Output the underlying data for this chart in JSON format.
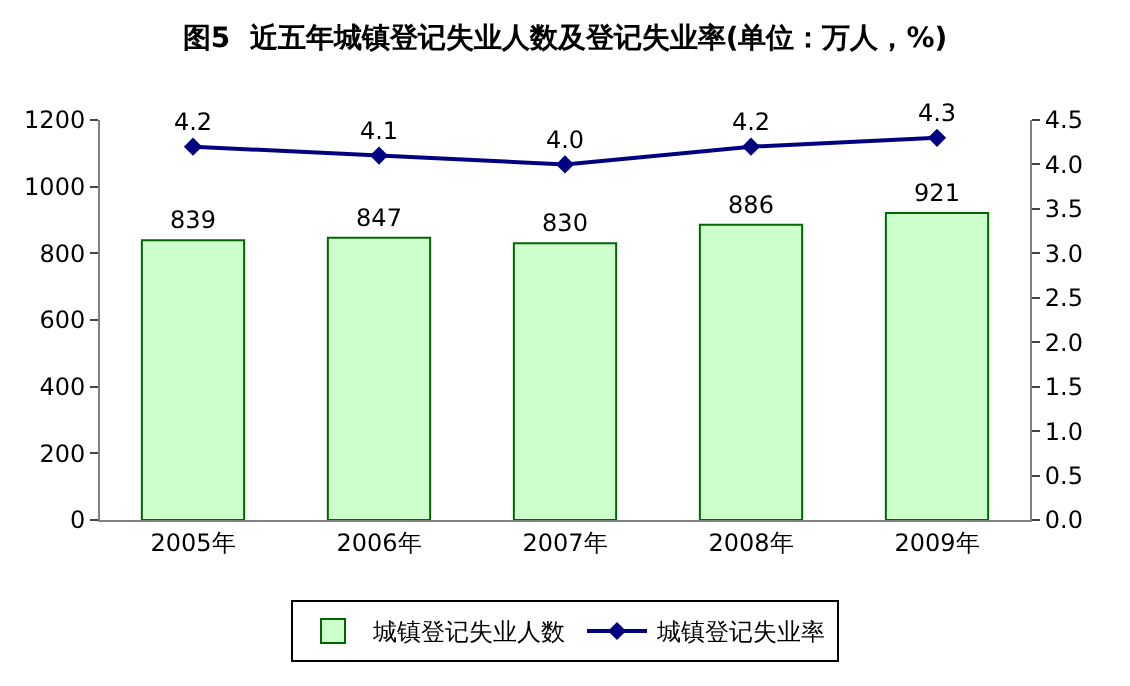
{
  "chart_data": {
    "type": "bar",
    "title": "图5  近五年城镇登记失业人数及登记失业率(单位：万人，%)",
    "categories": [
      "2005年",
      "2006年",
      "2007年",
      "2008年",
      "2009年"
    ],
    "series": [
      {
        "name": "城镇登记失业人数",
        "color": "#ccffcc",
        "values": [
          839,
          847,
          830,
          886,
          921
        ],
        "value_labels": [
          "839",
          "847",
          "830",
          "886",
          "921"
        ]
      },
      {
        "name": "城镇登记失业率",
        "type": "line",
        "axis": "y2",
        "color": "#000080",
        "marker": "diamond",
        "values": [
          4.2,
          4.1,
          4.0,
          4.2,
          4.3
        ],
        "value_labels": [
          "4.2",
          "4.1",
          "4.0",
          "4.2",
          "4.3"
        ]
      }
    ],
    "ylim": [
      0,
      1200
    ],
    "yticks": [
      0,
      200,
      400,
      600,
      800,
      1000,
      1200
    ],
    "y2lim": [
      0,
      4.5
    ],
    "y2ticks": [
      {
        "value": 0,
        "label": "0.0"
      },
      0.5,
      {
        "value": 1,
        "label": "1.0"
      },
      1.5,
      {
        "value": 2,
        "label": "2.0"
      },
      2.5,
      {
        "value": 3,
        "label": "3.0"
      },
      3.5,
      {
        "value": 4,
        "label": "4.0"
      },
      4.5
    ],
    "legend": "bottom"
  }
}
